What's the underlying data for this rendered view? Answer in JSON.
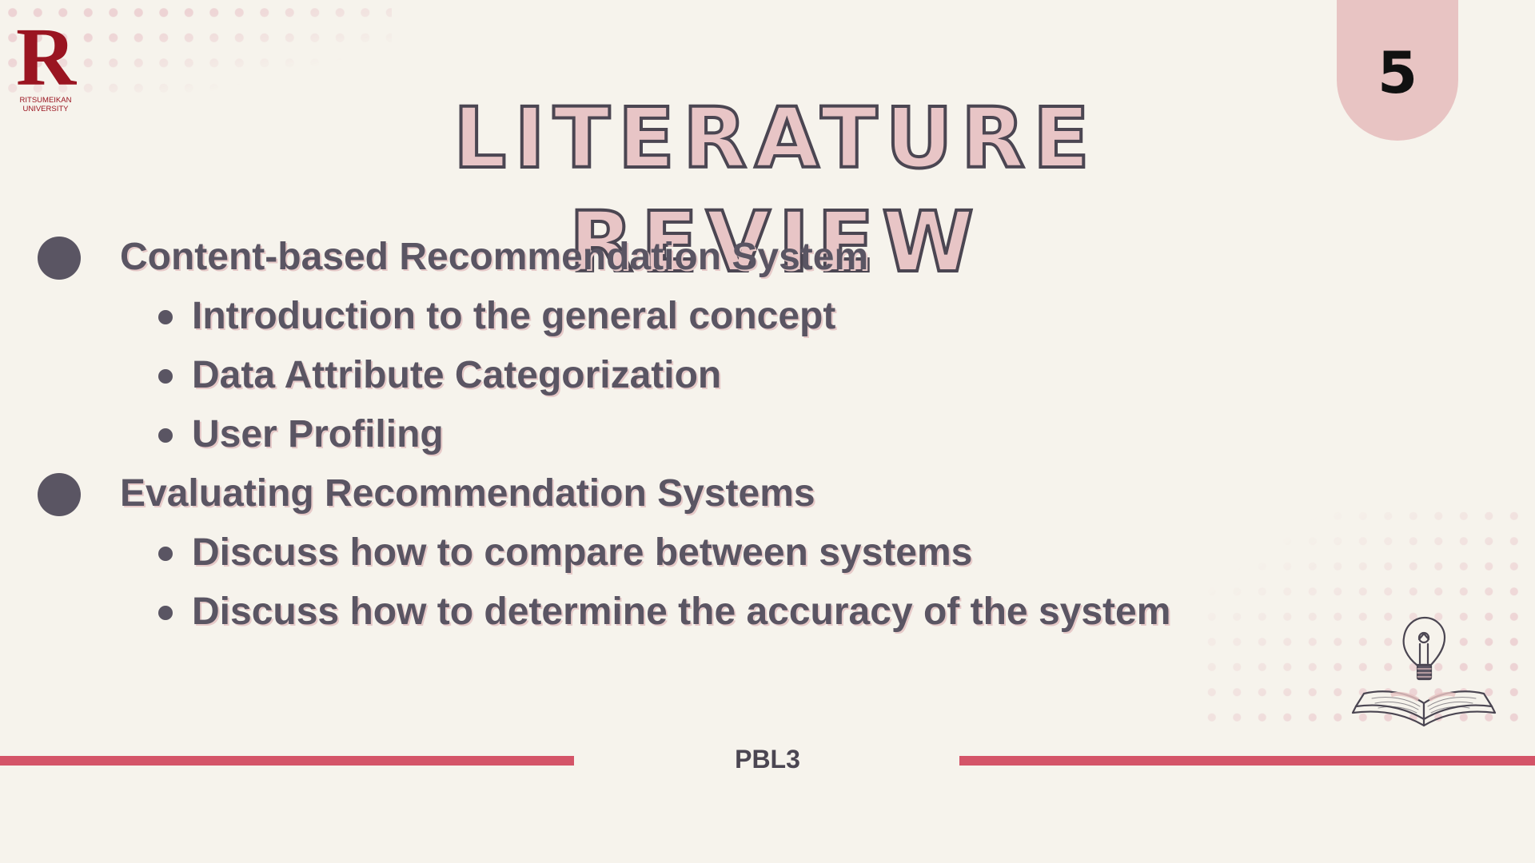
{
  "logo": {
    "letter": "R",
    "university_line1": "RITSUMEIKAN",
    "university_line2": "UNIVERSITY"
  },
  "page_number": "5",
  "title": "LITERATURE REVIEW",
  "content": {
    "sections": [
      {
        "label": "Content-based Recommendation System",
        "subitems": [
          "Introduction to the general concept",
          "Data Attribute Categorization",
          "User Profiling"
        ]
      },
      {
        "label": "Evaluating Recommendation Systems",
        "subitems": [
          "Discuss how to compare between systems",
          "Discuss how to determine the accuracy of the system"
        ]
      }
    ]
  },
  "footer": {
    "label": "PBL3"
  },
  "illustration": {
    "icon": "lightbulb-book-icon"
  },
  "colors": {
    "background": "#f6f3ec",
    "accent_pink": "#e8c4c3",
    "text_dark": "#5a5563",
    "footer_line": "#d45468",
    "logo_red": "#9a1521"
  }
}
